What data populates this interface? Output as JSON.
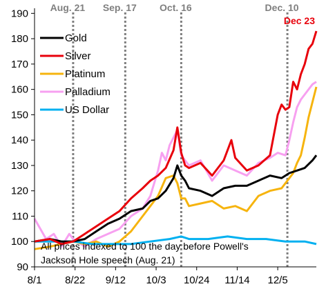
{
  "chart_data": {
    "type": "line",
    "ylim": [
      90,
      192
    ],
    "yticks": [
      90,
      100,
      110,
      120,
      130,
      140,
      150,
      160,
      170,
      180,
      190
    ],
    "xticks": [
      "8/1",
      "8/22",
      "9/12",
      "10/3",
      "10/24",
      "11/14",
      "12/5"
    ],
    "x_day_range": [
      0,
      146
    ],
    "xtick_days": [
      0,
      21,
      42,
      63,
      84,
      105,
      126
    ],
    "events": [
      {
        "label": "Aug. 21",
        "day": 20
      },
      {
        "label": "Sep. 17",
        "day": 47
      },
      {
        "label": "Oct. 16",
        "day": 76
      },
      {
        "label": "Dec. 10",
        "day": 131
      }
    ],
    "end_label": {
      "text": "Dec 23",
      "color": "#e8000b"
    },
    "note_lines": [
      "All prices indexed to 100 the day before Powell's",
      "Jackson Hole speech (Aug. 21)"
    ],
    "series": [
      {
        "name": "Gold",
        "color": "#000000",
        "x": [
          0,
          8,
          14,
          20,
          26,
          32,
          38,
          44,
          50,
          56,
          60,
          64,
          68,
          72,
          74,
          76,
          78,
          80,
          86,
          92,
          98,
          104,
          110,
          116,
          122,
          128,
          132,
          136,
          140,
          144,
          146
        ],
        "y": [
          100,
          101,
          100,
          100,
          101,
          104,
          107,
          109,
          112,
          113,
          116,
          117,
          120,
          125,
          130,
          126,
          124,
          121,
          120,
          118,
          121,
          122,
          122,
          124,
          126,
          125,
          127,
          128,
          129,
          132,
          134
        ]
      },
      {
        "name": "Silver",
        "color": "#e8000b",
        "x": [
          0,
          8,
          14,
          20,
          26,
          32,
          38,
          44,
          50,
          56,
          60,
          64,
          68,
          72,
          74,
          76,
          78,
          80,
          86,
          92,
          98,
          102,
          104,
          110,
          116,
          122,
          126,
          128,
          130,
          132,
          134,
          136,
          138,
          140,
          142,
          144,
          146
        ],
        "y": [
          100,
          101,
          99,
          100,
          103,
          106,
          109,
          112,
          117,
          121,
          124,
          126,
          129,
          136,
          145,
          135,
          130,
          129,
          131,
          126,
          132,
          140,
          133,
          128,
          130,
          134,
          150,
          154,
          152,
          153,
          163,
          160,
          166,
          170,
          176,
          178,
          183
        ]
      },
      {
        "name": "Platinum",
        "color": "#f6b40e",
        "x": [
          0,
          8,
          14,
          20,
          26,
          32,
          38,
          44,
          50,
          56,
          60,
          64,
          68,
          72,
          74,
          76,
          78,
          80,
          86,
          92,
          98,
          104,
          110,
          116,
          122,
          128,
          132,
          134,
          136,
          138,
          140,
          142,
          144,
          146
        ],
        "y": [
          97,
          98,
          99,
          100,
          99,
          100,
          98,
          100,
          104,
          110,
          114,
          118,
          125,
          126,
          123,
          117,
          117,
          114,
          115,
          116,
          113,
          114,
          112,
          118,
          120,
          121,
          125,
          127,
          131,
          134,
          141,
          149,
          155,
          161
        ]
      },
      {
        "name": "Palladium",
        "color": "#f7a0f0",
        "x": [
          0,
          6,
          10,
          14,
          18,
          20,
          26,
          32,
          38,
          44,
          50,
          56,
          60,
          64,
          66,
          68,
          70,
          72,
          74,
          76,
          78,
          80,
          86,
          92,
          98,
          104,
          110,
          116,
          122,
          126,
          130,
          132,
          134,
          136,
          138,
          140,
          142,
          144,
          146
        ],
        "y": [
          109,
          101,
          103,
          98,
          103,
          101,
          98,
          101,
          103,
          105,
          110,
          113,
          118,
          128,
          135,
          132,
          138,
          141,
          144,
          134,
          132,
          130,
          132,
          124,
          130,
          128,
          126,
          131,
          133,
          135,
          134,
          140,
          147,
          153,
          156,
          158,
          160,
          162,
          163
        ]
      },
      {
        "name": "US Dollar",
        "color": "#00b0f0",
        "x": [
          0,
          10,
          20,
          30,
          40,
          50,
          60,
          70,
          76,
          80,
          90,
          100,
          110,
          120,
          130,
          136,
          140,
          146
        ],
        "y": [
          100,
          100,
          100,
          99,
          99,
          99,
          100,
          101,
          102,
          101,
          101,
          102,
          101,
          101,
          100,
          100,
          100,
          99
        ]
      }
    ],
    "legend_position": "top-left",
    "grid": false
  }
}
